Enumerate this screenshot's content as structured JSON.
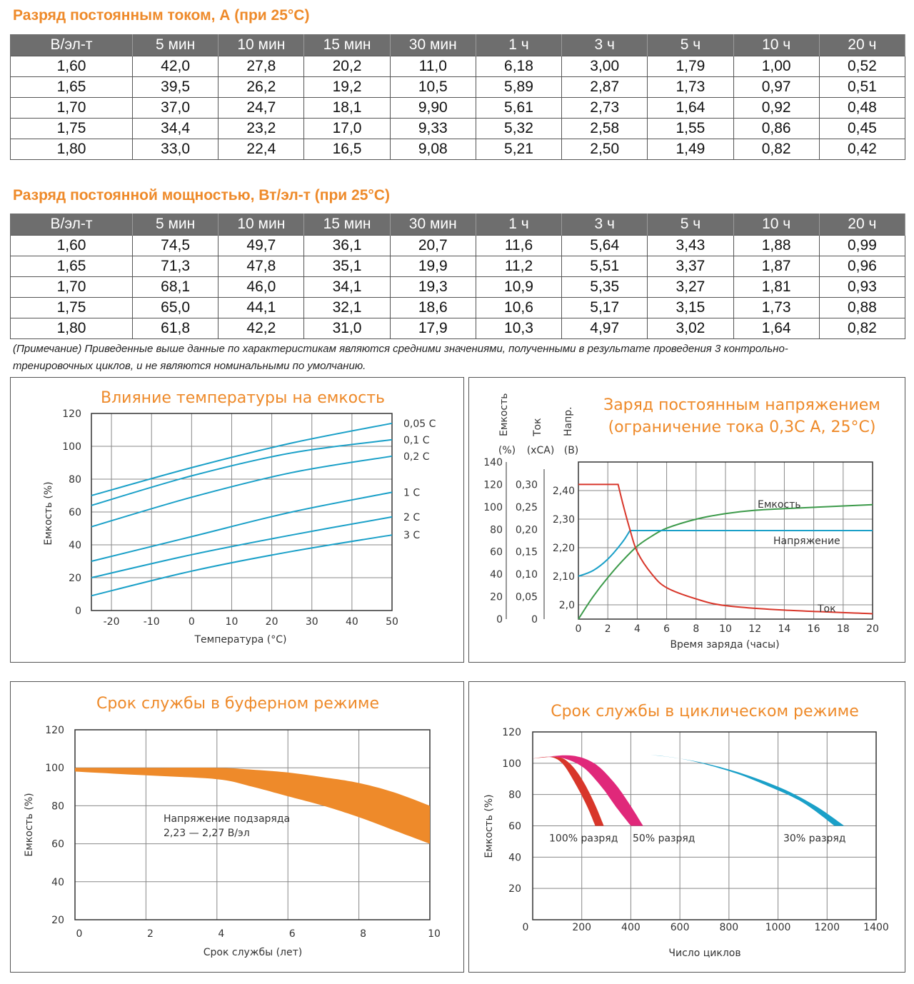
{
  "table_current": {
    "title": "Разряд постоянным током, А (при 25°C)",
    "headers": [
      "В/эл-т",
      "5 мин",
      "10 мин",
      "15 мин",
      "30 мин",
      "1 ч",
      "3 ч",
      "5 ч",
      "10 ч",
      "20 ч"
    ],
    "rows": [
      [
        "1,60",
        "42,0",
        "27,8",
        "20,2",
        "11,0",
        "6,18",
        "3,00",
        "1,79",
        "1,00",
        "0,52"
      ],
      [
        "1,65",
        "39,5",
        "26,2",
        "19,2",
        "10,5",
        "5,89",
        "2,87",
        "1,73",
        "0,97",
        "0,51"
      ],
      [
        "1,70",
        "37,0",
        "24,7",
        "18,1",
        "9,90",
        "5,61",
        "2,73",
        "1,64",
        "0,92",
        "0,48"
      ],
      [
        "1,75",
        "34,4",
        "23,2",
        "17,0",
        "9,33",
        "5,32",
        "2,58",
        "1,55",
        "0,86",
        "0,45"
      ],
      [
        "1,80",
        "33,0",
        "22,4",
        "16,5",
        "9,08",
        "5,21",
        "2,50",
        "1,49",
        "0,82",
        "0,42"
      ]
    ]
  },
  "table_power": {
    "title": "Разряд постоянной мощностью, Вт/эл-т (при 25°C)",
    "headers": [
      "В/эл-т",
      "5 мин",
      "10 мин",
      "15 мин",
      "30 мин",
      "1 ч",
      "3 ч",
      "5 ч",
      "10 ч",
      "20 ч"
    ],
    "rows": [
      [
        "1,60",
        "74,5",
        "49,7",
        "36,1",
        "20,7",
        "11,6",
        "5,64",
        "3,43",
        "1,88",
        "0,99"
      ],
      [
        "1,65",
        "71,3",
        "47,8",
        "35,1",
        "19,9",
        "11,2",
        "5,51",
        "3,37",
        "1,87",
        "0,96"
      ],
      [
        "1,70",
        "68,1",
        "46,0",
        "34,1",
        "19,3",
        "10,9",
        "5,35",
        "3,27",
        "1,81",
        "0,93"
      ],
      [
        "1,75",
        "65,0",
        "44,1",
        "32,1",
        "18,6",
        "10,6",
        "5,17",
        "3,15",
        "1,73",
        "0,88"
      ],
      [
        "1,80",
        "61,8",
        "42,2",
        "31,0",
        "17,9",
        "10,3",
        "4,97",
        "3,02",
        "1,64",
        "0,82"
      ]
    ]
  },
  "note": {
    "line1": "(Примечание) Приведенные выше данные по характеристикам являются средними значениями, полученными в результате проведения 3 контрольно-",
    "line2": "тренировочных циклов, и не являются номинальными по умолчанию."
  },
  "colors": {
    "accent": "#ee8a2a",
    "cyan": "#1aa0c8",
    "red": "#d8362a",
    "green": "#3c9a4a",
    "magenta": "#e0287a",
    "header_bg": "#6e6e6e"
  },
  "chart_data": [
    {
      "type": "line",
      "title": "Влияние температуры на емкость",
      "xlabel": "Температура (°C)",
      "ylabel": "Емкость (%)",
      "xlim": [
        -25,
        50
      ],
      "ylim": [
        0,
        120
      ],
      "xticks": [
        "-20",
        "-10",
        "0",
        "10",
        "20",
        "30",
        "40",
        "50"
      ],
      "yticks": [
        "0",
        "20",
        "40",
        "60",
        "80",
        "100",
        "120"
      ],
      "grid": true,
      "series": [
        {
          "name": "0,05 C",
          "x": [
            -25,
            0,
            25,
            50
          ],
          "y": [
            70,
            87,
            102,
            114
          ]
        },
        {
          "name": "0,1 C",
          "x": [
            -25,
            0,
            25,
            50
          ],
          "y": [
            64,
            82,
            96,
            104
          ]
        },
        {
          "name": "0,2 C",
          "x": [
            -25,
            0,
            25,
            50
          ],
          "y": [
            51,
            69,
            84,
            94
          ]
        },
        {
          "name": "1 C",
          "x": [
            -25,
            0,
            25,
            50
          ],
          "y": [
            30,
            45,
            60,
            72
          ]
        },
        {
          "name": "2 C",
          "x": [
            -25,
            0,
            25,
            50
          ],
          "y": [
            20,
            34,
            46,
            57
          ]
        },
        {
          "name": "3 C",
          "x": [
            -25,
            0,
            25,
            50
          ],
          "y": [
            9,
            24,
            36,
            46
          ]
        }
      ]
    },
    {
      "type": "line",
      "title": "Заряд постоянным напряжением",
      "subtitle": "(ограничение тока 0,3С А, 25°С)",
      "xlabel": "Время заряда (часы)",
      "axes_headers": [
        {
          "name": "Емкость",
          "unit": "(%)"
        },
        {
          "name": "Ток",
          "unit": "(хСА)"
        },
        {
          "name": "Напр.",
          "unit": "(В)"
        }
      ],
      "xticks": [
        "0",
        "2",
        "4",
        "6",
        "8",
        "10",
        "12",
        "14",
        "16",
        "18",
        "20"
      ],
      "y_capacity_ticks": [
        "0",
        "20",
        "40",
        "60",
        "80",
        "100",
        "120",
        "140"
      ],
      "y_current_ticks": [
        "0",
        "0,05",
        "0,10",
        "0,15",
        "0,20",
        "0,25",
        "0,30"
      ],
      "y_voltage_ticks": [
        "2,0",
        "2,10",
        "2,20",
        "2,30",
        "2,40"
      ],
      "xlim": [
        0,
        20
      ],
      "grid": true,
      "series": [
        {
          "name": "Емкость",
          "axis": "capacity",
          "x": [
            0,
            1,
            2,
            3,
            4,
            5,
            6,
            8,
            10,
            12,
            15,
            20
          ],
          "y": [
            0,
            20,
            37,
            52,
            65,
            74,
            81,
            89,
            94,
            97,
            99,
            102
          ]
        },
        {
          "name": "Напряжение",
          "axis": "voltage",
          "x": [
            0,
            1,
            2,
            3,
            3.5,
            20
          ],
          "y": [
            2.1,
            2.12,
            2.16,
            2.22,
            2.26,
            2.26
          ]
        },
        {
          "name": "Ток",
          "axis": "current",
          "x": [
            0,
            2.7,
            3,
            3.5,
            4,
            5,
            6,
            8,
            10,
            14,
            20
          ],
          "y": [
            0.3,
            0.3,
            0.26,
            0.2,
            0.15,
            0.1,
            0.07,
            0.045,
            0.03,
            0.02,
            0.012
          ]
        }
      ],
      "labels": [
        "Емкость",
        "Напряжение",
        "Ток"
      ]
    },
    {
      "type": "area",
      "title": "Срок службы в буферном режиме",
      "xlabel": "Срок службы (лет)",
      "ylabel": "Емкость (%)",
      "xlim": [
        0,
        10
      ],
      "ylim": [
        20,
        120
      ],
      "xticks": [
        "0",
        "2",
        "4",
        "6",
        "8",
        "10"
      ],
      "yticks": [
        "20",
        "40",
        "60",
        "80",
        "100",
        "120"
      ],
      "grid": true,
      "band": {
        "x": [
          0,
          2,
          4,
          5,
          6,
          7,
          8,
          9,
          10
        ],
        "upper": [
          100,
          100,
          100,
          99,
          97.5,
          95,
          92,
          87,
          80
        ],
        "lower": [
          98,
          96,
          94,
          90,
          85,
          80,
          74,
          67,
          60
        ]
      },
      "annotation": [
        "Напряжение подзаряда",
        "2,23 — 2,27 В/эл"
      ]
    },
    {
      "type": "area",
      "title": "Срок службы в циклическом режиме",
      "xlabel": "Число циклов",
      "ylabel": "Емкость (%)",
      "xlim": [
        0,
        1400
      ],
      "ylim": [
        0,
        120
      ],
      "xticks": [
        "0",
        "200",
        "400",
        "600",
        "800",
        "1000",
        "1200",
        "1400"
      ],
      "yticks": [
        "20",
        "40",
        "60",
        "80",
        "100",
        "120"
      ],
      "grid": true,
      "series": [
        {
          "name": "100% разряд",
          "upper_x": [
            0,
            100,
            150,
            200,
            250,
            290
          ],
          "upper_y": [
            103,
            104,
            100,
            90,
            75,
            60
          ],
          "lower_x": [
            0,
            70,
            120,
            170,
            220,
            255
          ],
          "lower_y": [
            103,
            104,
            100,
            88,
            73,
            60
          ]
        },
        {
          "name": "50% разряд",
          "upper_x": [
            0,
            150,
            250,
            330,
            390,
            450
          ],
          "upper_y": [
            103,
            105,
            100,
            88,
            75,
            60
          ],
          "lower_x": [
            0,
            100,
            200,
            280,
            340,
            400
          ],
          "lower_y": [
            103,
            104,
            98,
            85,
            72,
            60
          ]
        },
        {
          "name": "30% разряд",
          "upper_x": [
            0,
            200,
            400,
            600,
            800,
            1000,
            1150,
            1270
          ],
          "upper_y": [
            103,
            105,
            106,
            103,
            96,
            85,
            73,
            60
          ],
          "lower_x": [
            0,
            200,
            400,
            600,
            800,
            950,
            1100,
            1230
          ],
          "lower_y": [
            103,
            105,
            106,
            103,
            95,
            86,
            75,
            60
          ]
        }
      ]
    }
  ]
}
